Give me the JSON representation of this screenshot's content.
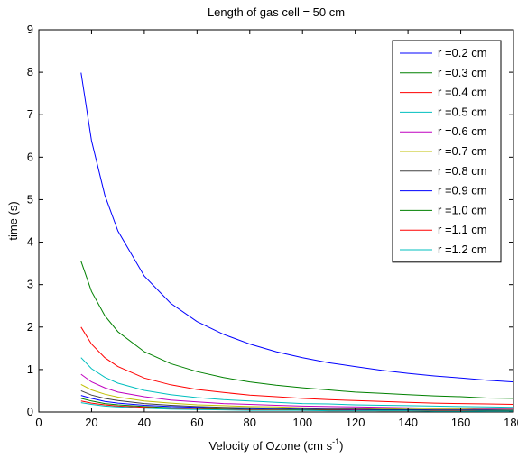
{
  "chart_data": {
    "type": "line",
    "title": "Length of gas cell = 50 cm",
    "xlabel": "Velocity of Ozone (cm s",
    "xlabel_sup": "-1",
    "xlabel_end": ")",
    "ylabel": "time (s)",
    "xlim": [
      0,
      180
    ],
    "ylim": [
      0,
      9
    ],
    "xticks": [
      0,
      20,
      40,
      60,
      80,
      100,
      120,
      140,
      160,
      180
    ],
    "yticks": [
      0,
      1,
      2,
      3,
      4,
      5,
      6,
      7,
      8,
      9
    ],
    "grid": false,
    "legend_position": "top-right",
    "x": [
      16,
      20,
      25,
      30,
      40,
      50,
      60,
      70,
      80,
      90,
      100,
      110,
      120,
      130,
      140,
      150,
      160,
      170,
      180
    ],
    "series": [
      {
        "name": "r =0.2 cm",
        "color": "#0000ff",
        "values": [
          7.99,
          6.39,
          5.11,
          4.26,
          3.2,
          2.56,
          2.13,
          1.83,
          1.6,
          1.42,
          1.28,
          1.16,
          1.07,
          0.98,
          0.91,
          0.85,
          0.8,
          0.75,
          0.71
        ]
      },
      {
        "name": "r =0.3 cm",
        "color": "#008000",
        "values": [
          3.55,
          2.84,
          2.27,
          1.89,
          1.42,
          1.14,
          0.95,
          0.81,
          0.71,
          0.63,
          0.57,
          0.52,
          0.47,
          0.44,
          0.41,
          0.38,
          0.36,
          0.33,
          0.32
        ]
      },
      {
        "name": "r =0.4 cm",
        "color": "#ff0000",
        "values": [
          2.0,
          1.6,
          1.28,
          1.07,
          0.8,
          0.64,
          0.53,
          0.46,
          0.4,
          0.36,
          0.32,
          0.29,
          0.27,
          0.25,
          0.23,
          0.21,
          0.2,
          0.19,
          0.18
        ]
      },
      {
        "name": "r =0.5 cm",
        "color": "#00bfbf",
        "values": [
          1.28,
          1.02,
          0.82,
          0.68,
          0.51,
          0.41,
          0.34,
          0.29,
          0.26,
          0.23,
          0.2,
          0.19,
          0.17,
          0.16,
          0.15,
          0.14,
          0.13,
          0.12,
          0.11
        ]
      },
      {
        "name": "r =0.6 cm",
        "color": "#bf00bf",
        "values": [
          0.89,
          0.71,
          0.57,
          0.47,
          0.36,
          0.28,
          0.24,
          0.2,
          0.18,
          0.16,
          0.14,
          0.13,
          0.12,
          0.11,
          0.1,
          0.09,
          0.09,
          0.08,
          0.08
        ]
      },
      {
        "name": "r =0.7 cm",
        "color": "#bfbf00",
        "values": [
          0.65,
          0.52,
          0.42,
          0.35,
          0.26,
          0.21,
          0.17,
          0.15,
          0.13,
          0.12,
          0.1,
          0.09,
          0.09,
          0.08,
          0.07,
          0.07,
          0.07,
          0.06,
          0.06
        ]
      },
      {
        "name": "r =0.8 cm",
        "color": "#404040",
        "values": [
          0.5,
          0.4,
          0.32,
          0.27,
          0.2,
          0.16,
          0.13,
          0.11,
          0.1,
          0.09,
          0.08,
          0.07,
          0.07,
          0.06,
          0.06,
          0.05,
          0.05,
          0.05,
          0.04
        ]
      },
      {
        "name": "r =0.9 cm",
        "color": "#0000ff",
        "values": [
          0.39,
          0.32,
          0.25,
          0.21,
          0.16,
          0.13,
          0.11,
          0.09,
          0.08,
          0.07,
          0.06,
          0.06,
          0.05,
          0.05,
          0.05,
          0.04,
          0.04,
          0.04,
          0.04
        ]
      },
      {
        "name": "r =1.0 cm",
        "color": "#008000",
        "values": [
          0.32,
          0.26,
          0.2,
          0.17,
          0.13,
          0.1,
          0.09,
          0.07,
          0.06,
          0.06,
          0.05,
          0.05,
          0.04,
          0.04,
          0.04,
          0.03,
          0.03,
          0.03,
          0.03
        ]
      },
      {
        "name": "r =1.1 cm",
        "color": "#ff0000",
        "values": [
          0.26,
          0.21,
          0.17,
          0.14,
          0.11,
          0.08,
          0.07,
          0.06,
          0.05,
          0.05,
          0.04,
          0.04,
          0.04,
          0.03,
          0.03,
          0.03,
          0.03,
          0.02,
          0.02
        ]
      },
      {
        "name": "r =1.2 cm",
        "color": "#00bfbf",
        "values": [
          0.22,
          0.18,
          0.14,
          0.12,
          0.09,
          0.07,
          0.06,
          0.05,
          0.04,
          0.04,
          0.04,
          0.03,
          0.03,
          0.03,
          0.03,
          0.02,
          0.02,
          0.02,
          0.02
        ]
      }
    ]
  }
}
